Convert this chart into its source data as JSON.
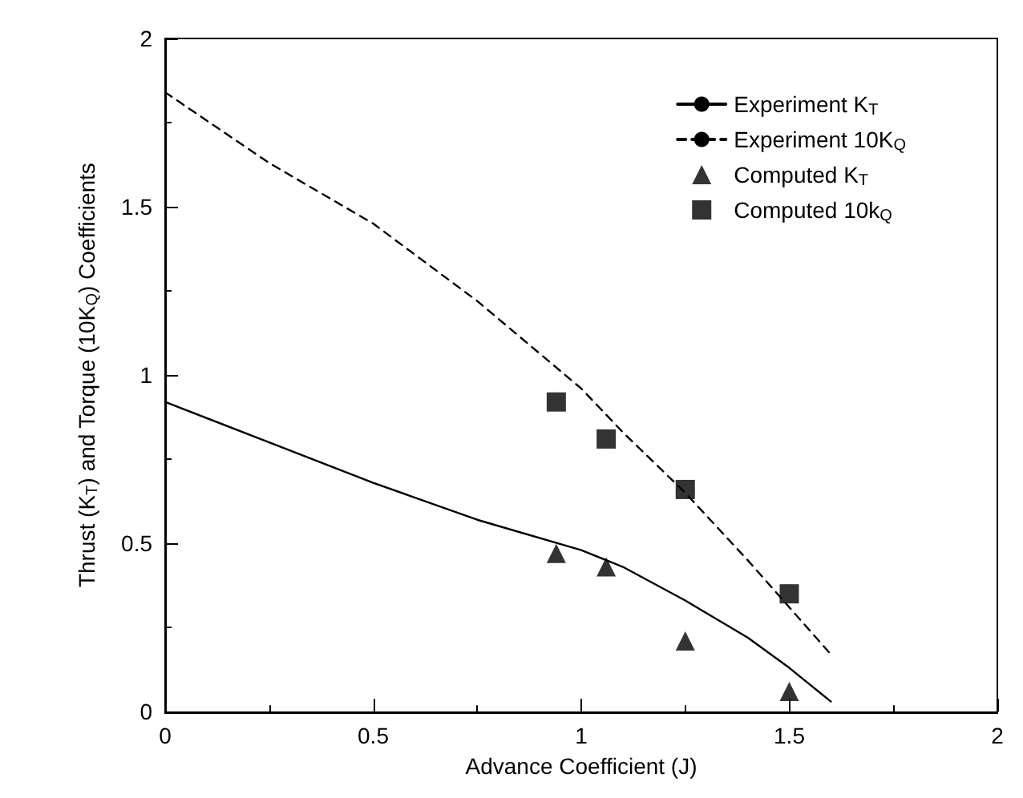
{
  "chart_data": {
    "type": "line",
    "xlabel": "Advance Coefficient (J)",
    "ylabel": "Thrust (K$_{T}$) and Torque (10K$_{Q}$) Coefficients",
    "xlim": [
      0,
      2
    ],
    "xticks": [
      0,
      0.5,
      1,
      1.5,
      2
    ],
    "ylim": [
      0,
      2
    ],
    "yticks": [
      0,
      0.5,
      1,
      1.5,
      2
    ],
    "grid": false,
    "legend": "top right",
    "series": [
      {
        "name": "Experiment K$_{T}$",
        "line_style": "solid",
        "marker": "none",
        "color": "#000000",
        "x": [
          0,
          0.25,
          0.5,
          0.75,
          1.0,
          1.1,
          1.25,
          1.4,
          1.5,
          1.6
        ],
        "values": [
          0.92,
          0.8,
          0.68,
          0.57,
          0.48,
          0.43,
          0.33,
          0.22,
          0.13,
          0.03
        ]
      },
      {
        "name": "Experiment 10K$_{Q}$",
        "line_style": "dashed",
        "marker": "none",
        "color": "#000000",
        "x": [
          0,
          0.25,
          0.5,
          0.75,
          1.0,
          1.1,
          1.25,
          1.4,
          1.5,
          1.6
        ],
        "values": [
          1.84,
          1.63,
          1.45,
          1.22,
          0.96,
          0.83,
          0.65,
          0.45,
          0.31,
          0.17
        ]
      },
      {
        "name": "Computed K$_{T}$",
        "type": "scatter",
        "marker": "triangle",
        "color": "#000000",
        "x": [
          0.94,
          1.06,
          1.25,
          1.5
        ],
        "values": [
          0.47,
          0.43,
          0.21,
          0.06
        ]
      },
      {
        "name": "Computed 10k$_{Q}$",
        "type": "scatter",
        "marker": "square",
        "color": "#000000",
        "x": [
          0.94,
          1.06,
          1.25,
          1.5
        ],
        "values": [
          0.92,
          0.81,
          0.66,
          0.35
        ]
      }
    ]
  }
}
